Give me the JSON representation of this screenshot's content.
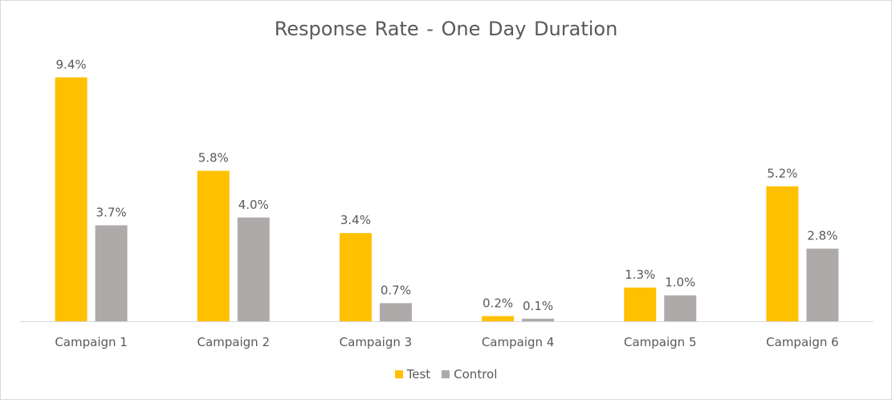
{
  "chart_data": {
    "type": "bar",
    "title": "Response Rate - One Day Duration",
    "categories": [
      "Campaign 1",
      "Campaign 2",
      "Campaign 3",
      "Campaign 4",
      "Campaign 5",
      "Campaign 6"
    ],
    "series": [
      {
        "name": "Test",
        "color": "#FFC000",
        "values": [
          9.4,
          5.8,
          3.4,
          0.2,
          1.3,
          5.2
        ],
        "labels": [
          "9.4%",
          "5.8%",
          "3.4%",
          "0.2%",
          "1.3%",
          "5.2%"
        ]
      },
      {
        "name": "Control",
        "color": "#AEAAAA",
        "values": [
          3.7,
          4.0,
          0.7,
          0.1,
          1.0,
          2.8
        ],
        "labels": [
          "3.7%",
          "4.0%",
          "0.7%",
          "0.1%",
          "1.0%",
          "2.8%"
        ]
      }
    ],
    "xlabel": "",
    "ylabel": "",
    "ylim": [
      0,
      10
    ],
    "grid": false,
    "legend_position": "bottom-center",
    "axis_color": "#D9D9D9"
  }
}
